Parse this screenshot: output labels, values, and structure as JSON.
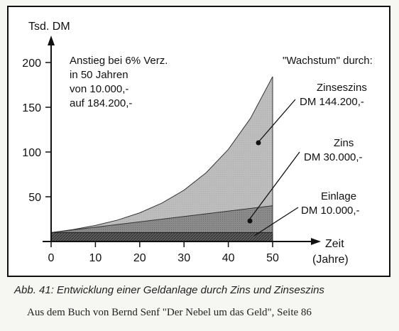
{
  "chart_data": {
    "type": "area",
    "ylabel": "Tsd. DM",
    "xlabel": "Zeit",
    "xlabel_unit": "(Jahre)",
    "xlim": [
      0,
      50
    ],
    "ylim": [
      0,
      200
    ],
    "x_ticks": [
      "0",
      "10",
      "20",
      "30",
      "40",
      "50"
    ],
    "y_ticks": [
      "50",
      "100",
      "150",
      "200"
    ],
    "x_tick_values": [
      0,
      10,
      20,
      30,
      40,
      50
    ],
    "y_tick_values": [
      50,
      100,
      150,
      200
    ],
    "grid": false,
    "series": [
      {
        "name": "Einlage",
        "x": [
          0,
          50
        ],
        "values": [
          10,
          10
        ]
      },
      {
        "name": "Zins",
        "x": [
          0,
          50
        ],
        "values": [
          10,
          40
        ]
      },
      {
        "name": "Zinseszins",
        "x": [
          0,
          5,
          10,
          15,
          20,
          25,
          30,
          35,
          40,
          45,
          50
        ],
        "values": [
          10,
          13.4,
          17.9,
          24.0,
          32.1,
          42.9,
          57.4,
          76.9,
          102.9,
          137.6,
          184.2
        ]
      }
    ],
    "growth_rate": "6%",
    "years": 50
  },
  "annotations": {
    "note_lines": [
      "Anstieg bei 6% Verz.",
      "in 50 Jahren",
      "von 10.000,-",
      "auf 184.200,-"
    ],
    "wachstum_header": "\"Wachstum\" durch:",
    "zinseszins_label": "Zinseszins",
    "zinseszins_value": "DM 144.200,-",
    "zins_label": "Zins",
    "zins_value": "DM 30.000,-",
    "einlage_label": "Einlage",
    "einlage_value": "DM 10.000,-"
  },
  "caption": "Abb. 41: Entwicklung einer Geldanlage durch Zins und Zinseszins",
  "source": "Aus dem Buch von Bernd Senf  \"Der Nebel um das Geld\",  Seite 86",
  "colors": {
    "zinseszins_fill": "#b9b9b9",
    "zins_fill": "#8a8a8a",
    "einlage_fill": "#5b5b5b",
    "axis": "#111111"
  }
}
